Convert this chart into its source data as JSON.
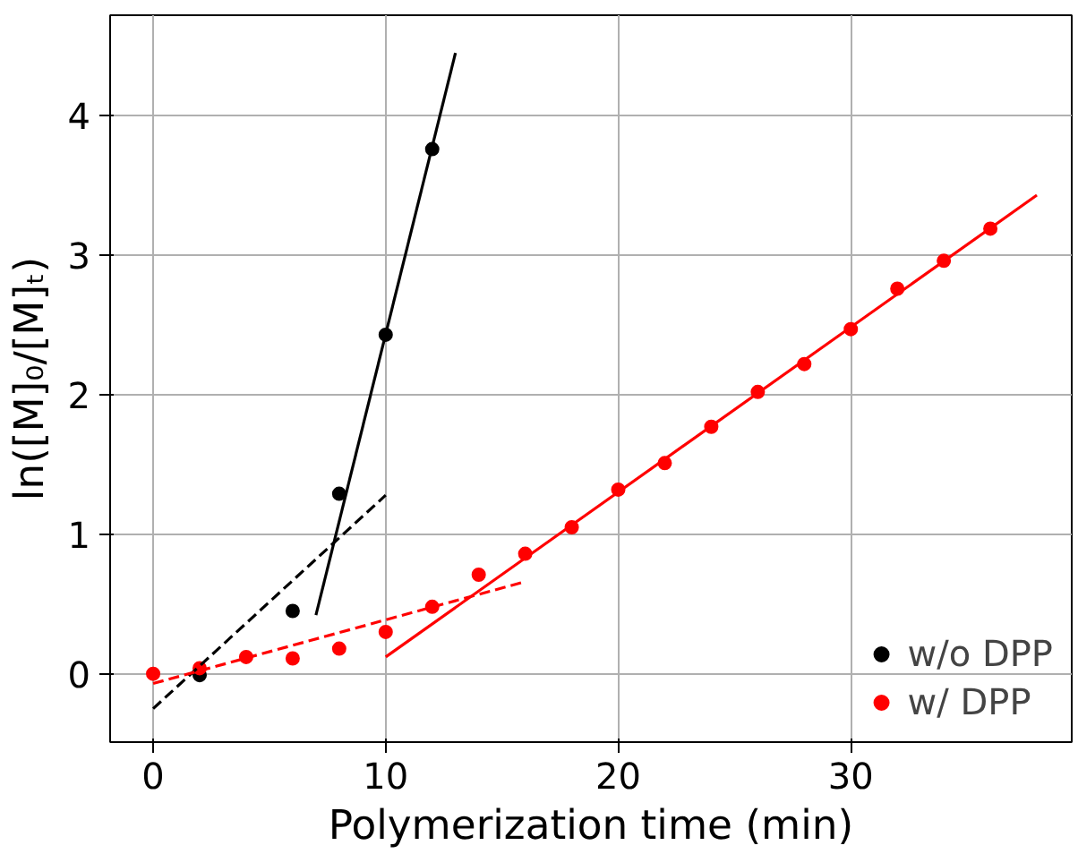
{
  "chart_data": {
    "type": "scatter",
    "xlabel": "Polymerization time (min)",
    "ylabel": "ln([M]₀/[M]ₜ)",
    "xlim": [
      -1.85,
      39.5
    ],
    "ylim": [
      -0.49,
      4.72
    ],
    "xticks": [
      0,
      10,
      20,
      30
    ],
    "yticks": [
      0,
      1,
      2,
      3,
      4
    ],
    "grid": true,
    "legend": "bottom right",
    "marker": "circle",
    "series": [
      {
        "name": "w/o DPP",
        "color": "#000000",
        "x": [
          2,
          4,
          6,
          8,
          10,
          12
        ],
        "values": [
          -0.01,
          null,
          0.45,
          1.29,
          2.43,
          3.76
        ]
      },
      {
        "name": "w/ DPP",
        "color": "#ff0000",
        "x": [
          0,
          2,
          4,
          6,
          8,
          10,
          12,
          14,
          16,
          18,
          20,
          22,
          24,
          26,
          28,
          30,
          32,
          34,
          36
        ],
        "values": [
          0,
          0.04,
          0.12,
          0.11,
          0.18,
          0.3,
          0.48,
          0.71,
          0.86,
          1.05,
          1.32,
          1.51,
          1.77,
          2.02,
          2.22,
          2.47,
          2.76,
          2.96,
          3.19
        ]
      },
      {
        "type": "line",
        "color": "#000000",
        "line_style": "solid",
        "marker": "none",
        "x": [
          7,
          13
        ],
        "values": [
          0.42,
          4.45
        ]
      },
      {
        "type": "line",
        "color": "#000000",
        "line_style": "dashed",
        "marker": "none",
        "x": [
          0,
          10
        ],
        "values": [
          -0.25,
          1.28
        ]
      },
      {
        "type": "line",
        "color": "#ff0000",
        "line_style": "solid",
        "marker": "none",
        "x": [
          10,
          38
        ],
        "values": [
          0.12,
          3.43
        ]
      },
      {
        "type": "line",
        "color": "#ff0000",
        "line_style": "dashed",
        "marker": "none",
        "x": [
          0,
          16
        ],
        "values": [
          -0.07,
          0.66
        ]
      }
    ]
  }
}
